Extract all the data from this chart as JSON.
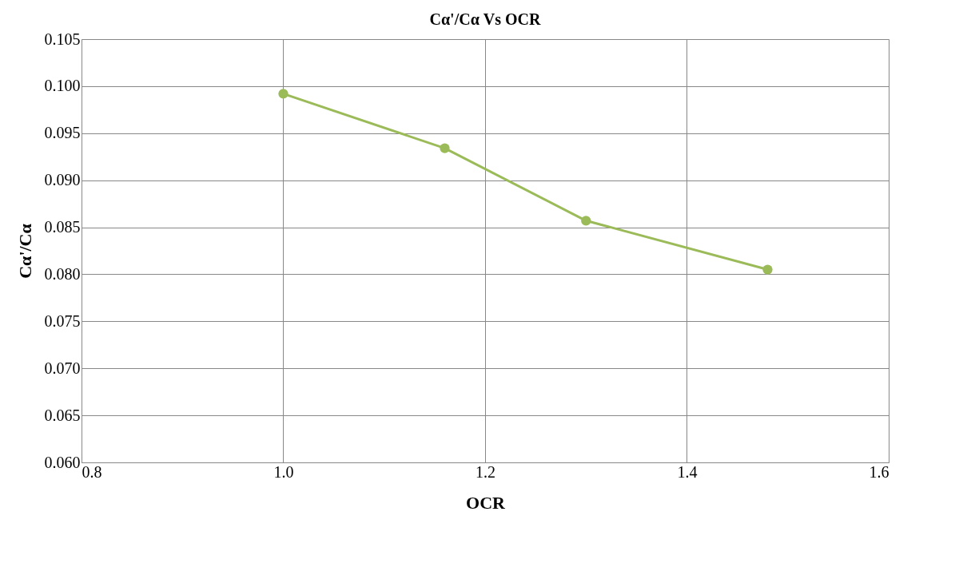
{
  "chart_data": {
    "type": "line",
    "title": "Cα'/Cα Vs OCR",
    "xlabel": "OCR",
    "ylabel": "Cα'/Cα",
    "x": [
      1.0,
      1.16,
      1.3,
      1.48
    ],
    "series": [
      {
        "color": "#9bbb59",
        "values": [
          0.0992,
          0.0934,
          0.0857,
          0.0805
        ]
      }
    ],
    "xlim": [
      0.8,
      1.6
    ],
    "xticks": [
      {
        "value": 0.8,
        "label": "0.8"
      },
      {
        "value": 1.0,
        "label": "1.0"
      },
      {
        "value": 1.2,
        "label": "1.2"
      },
      {
        "value": 1.4,
        "label": "1.4"
      },
      {
        "value": 1.6,
        "label": "1.6"
      }
    ],
    "ylim": [
      0.06,
      0.105
    ],
    "yticks": [
      {
        "value": 0.06,
        "label": "0.060"
      },
      {
        "value": 0.065,
        "label": "0.065"
      },
      {
        "value": 0.07,
        "label": "0.070"
      },
      {
        "value": 0.075,
        "label": "0.075"
      },
      {
        "value": 0.08,
        "label": "0.080"
      },
      {
        "value": 0.085,
        "label": "0.085"
      },
      {
        "value": 0.09,
        "label": "0.090"
      },
      {
        "value": 0.095,
        "label": "0.095"
      },
      {
        "value": 0.1,
        "label": "0.100"
      },
      {
        "value": 0.105,
        "label": "0.105"
      }
    ],
    "grid": true,
    "marker": "circle",
    "line_style": "solid",
    "legend": false
  }
}
